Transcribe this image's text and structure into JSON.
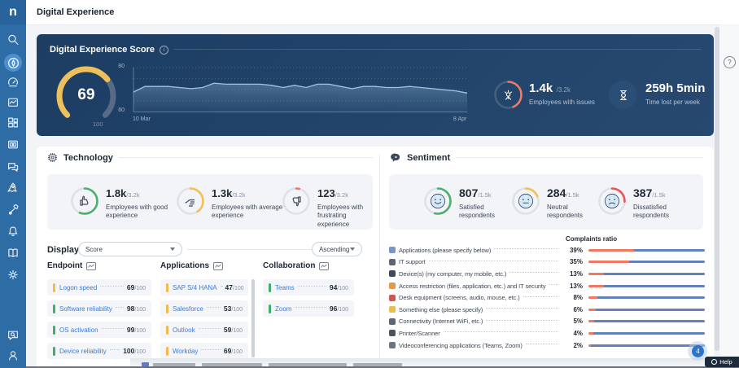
{
  "app": {
    "logo": "n",
    "page_title": "Digital Experience"
  },
  "sidebar": {
    "icons": [
      "search-icon",
      "compass-icon",
      "gauge-icon",
      "chart-window-icon",
      "grid-icon",
      "cards-icon",
      "chat-icon",
      "rocket-icon",
      "tools-icon",
      "bell-icon",
      "book-icon",
      "gear-icon",
      "chat-search-icon",
      "user-icon"
    ]
  },
  "score_panel": {
    "title": "Digital Experience Score",
    "gauge": {
      "value": 69,
      "max": 100,
      "max_label": "100"
    },
    "issues": {
      "value": "1.4k",
      "total": "/3.2k",
      "label": "Employees with issues",
      "fraction": 0.4375,
      "color": "#ef7b66"
    },
    "time_lost": {
      "value": "259h 5min",
      "label": "Time lost per week"
    }
  },
  "chart_data": {
    "type": "area",
    "title": "Digital Experience Score trend",
    "x_start": "10 Mar",
    "x_end": "8 Apr",
    "ylim": [
      60,
      80
    ],
    "yticks": [
      "80",
      "60"
    ],
    "xticks": [
      "10 Mar",
      "8 Apr"
    ],
    "grid": "dotted horizontal at 80/75/70/65",
    "legend": "none",
    "line_color": "#9ec4e4",
    "values": [
      69,
      71.5,
      71.5,
      71.5,
      71,
      70.5,
      71,
      73,
      72.5,
      72.5,
      72.5,
      72.5,
      72,
      71,
      72,
      71,
      72.5,
      72.5,
      71.5,
      70.5,
      71.5,
      71.5,
      71,
      71,
      71.5,
      71,
      70.5,
      70,
      69.5,
      68.5
    ]
  },
  "technology": {
    "title": "Technology",
    "stats": [
      {
        "value": "1.8k",
        "total": "/3.2k",
        "label": "Employees with good experience",
        "color": "#4cb06d",
        "fraction": 0.5625,
        "icon": "thumb-up-icon"
      },
      {
        "value": "1.3k",
        "total": "/3.2k",
        "label": "Employees with average experience",
        "color": "#f2c14e",
        "fraction": 0.406,
        "icon": "hand-icon"
      },
      {
        "value": "123",
        "total": "/3.2k",
        "label": "Employees with frustrating experience",
        "color": "#ee7862",
        "fraction": 0.038,
        "icon": "thumb-down-icon"
      }
    ],
    "display": {
      "label": "Display",
      "sort_by": "Score",
      "order": "Ascending"
    },
    "columns": [
      {
        "title": "Endpoint",
        "items": [
          {
            "name": "Logon speed",
            "score": "69",
            "max": "/100",
            "level": "warn"
          },
          {
            "name": "Software reliability",
            "score": "98",
            "max": "/100",
            "level": "good"
          },
          {
            "name": "OS activation",
            "score": "99",
            "max": "/100",
            "level": "good"
          },
          {
            "name": "Device reliability",
            "score": "100",
            "max": "/100",
            "level": "good"
          }
        ]
      },
      {
        "title": "Applications",
        "items": [
          {
            "name": "SAP S/4 HANA",
            "score": "47",
            "max": "/100",
            "level": "warn"
          },
          {
            "name": "Salesforce",
            "score": "53",
            "max": "/100",
            "level": "warn"
          },
          {
            "name": "Outlook",
            "score": "59",
            "max": "/100",
            "level": "warn"
          },
          {
            "name": "Workday",
            "score": "69",
            "max": "/100",
            "level": "warn"
          }
        ]
      },
      {
        "title": "Collaboration",
        "items": [
          {
            "name": "Teams",
            "score": "94",
            "max": "/100",
            "level": "good"
          },
          {
            "name": "Zoom",
            "score": "96",
            "max": "/100",
            "level": "good"
          }
        ]
      }
    ]
  },
  "sentiment": {
    "title": "Sentiment",
    "stats": [
      {
        "value": "807",
        "total": "/1.5k",
        "label": "Satisfied respondents",
        "color": "#4cb06d",
        "fraction": 0.538,
        "icon": "happy-face-icon"
      },
      {
        "value": "284",
        "total": "/1.5k",
        "label": "Neutral respondents",
        "color": "#f2c14e",
        "fraction": 0.189,
        "icon": "neutral-face-icon"
      },
      {
        "value": "387",
        "total": "/1.5k",
        "label": "Dissatisfied respondents",
        "color": "#ef5350",
        "fraction": 0.258,
        "icon": "sad-face-icon"
      }
    ],
    "complaints": {
      "header": "Complaints ratio",
      "bar_colors": {
        "ratio": "#ee7862",
        "rest": "#6381ba"
      },
      "rows": [
        {
          "label": "Applications (please specify below)",
          "pct": 39,
          "icon": "document-icon",
          "icon_color": "#7b93c9"
        },
        {
          "label": "IT support",
          "pct": 35,
          "icon": "wrench-icon",
          "icon_color": "#5d6673"
        },
        {
          "label": "Device(s) (my computer, my mobile, etc.)",
          "pct": 13,
          "icon": "phone-icon",
          "icon_color": "#3f4a58"
        },
        {
          "label": "Access restriction (files, application, etc.) and IT security",
          "pct": 13,
          "icon": "folder-lock-icon",
          "icon_color": "#e09a4a"
        },
        {
          "label": "Desk equipment (screens, audio, mouse, etc.)",
          "pct": 8,
          "icon": "desk-person-icon",
          "icon_color": "#d4554e"
        },
        {
          "label": "Something else (please specify)",
          "pct": 6,
          "icon": "folder-icon",
          "icon_color": "#ecbd4d"
        },
        {
          "label": "Connectivity (Internet WiFi, etc.)",
          "pct": 5,
          "icon": "connectivity-icon",
          "icon_color": "#5d6673"
        },
        {
          "label": "Printer/Scanner",
          "pct": 4,
          "icon": "printer-icon",
          "icon_color": "#4b535f"
        },
        {
          "label": "Videoconferencing applications (Teams, Zoom)",
          "pct": 2,
          "icon": "monitor-icon",
          "icon_color": "#6b7480"
        }
      ]
    }
  },
  "misc": {
    "help_label": "Help",
    "notification_count": "4"
  }
}
